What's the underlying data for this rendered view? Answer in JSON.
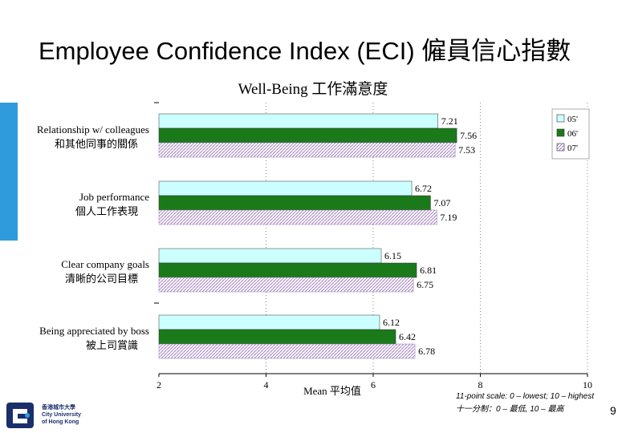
{
  "slide": {
    "title": "Employee Confidence Index (ECI) 僱員信心指數",
    "page_number": "9",
    "footnote_en": "11-point scale: 0 – lowest; 10 – highest",
    "footnote_zh": "十一分制：0 – 最低, 10 – 最高",
    "accent_color": "#2f9bdc"
  },
  "logo": {
    "text_zh": "香港城市大學",
    "text_en_1": "City University",
    "text_en_2": "of Hong Kong",
    "color": "#1a2f6b"
  },
  "chart_data": {
    "type": "bar",
    "orientation": "horizontal",
    "title": "Well-Being 工作滿意度",
    "xlabel": "Mean 平均值",
    "xlim": [
      2,
      10
    ],
    "xticks": [
      2,
      4,
      6,
      8,
      10
    ],
    "grid": "dotted vertical",
    "legend_position": "top-right",
    "categories": [
      {
        "en": "Relationship w/ colleagues",
        "zh": "和其他同事的關係"
      },
      {
        "en": "Job performance",
        "zh": "個人工作表現"
      },
      {
        "en": "Clear company goals",
        "zh": "清晰的公司目標"
      },
      {
        "en": "Being appreciated by boss",
        "zh": "被上司賞識"
      }
    ],
    "series": [
      {
        "name": "05'",
        "color": "#ccffff",
        "pattern": "solid",
        "values": [
          7.21,
          6.72,
          6.15,
          6.12
        ]
      },
      {
        "name": "06'",
        "color": "#1a7a1a",
        "pattern": "solid",
        "values": [
          7.56,
          7.07,
          6.81,
          6.42
        ]
      },
      {
        "name": "07'",
        "color": "#b48cc8",
        "pattern": "hatched",
        "values": [
          7.53,
          7.19,
          6.75,
          6.78
        ]
      }
    ]
  }
}
